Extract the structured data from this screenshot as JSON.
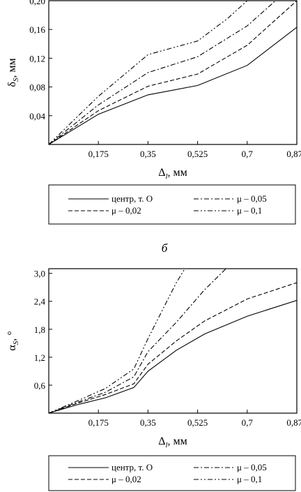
{
  "figure": {
    "separator_label": "б"
  },
  "chart_data": [
    {
      "type": "line",
      "xlabel_main": "Δ",
      "xlabel_sub": "l",
      "xlabel_unit": ", мм",
      "ylabel_main": "δ",
      "ylabel_sub": "S",
      "ylabel_unit": ", мм",
      "xlim": [
        0,
        0.875
      ],
      "ylim": [
        0,
        0.2
      ],
      "x_ticks": [
        0.175,
        0.35,
        0.525,
        0.7,
        0.875
      ],
      "x_tick_labels": [
        "0,175",
        "0,35",
        "0,525",
        "0,7",
        "0,875"
      ],
      "y_ticks": [
        0.04,
        0.08,
        0.12,
        0.16,
        0.2
      ],
      "y_tick_labels": [
        "0,04",
        "0,08",
        "0,12",
        "0,16",
        "0,20"
      ],
      "grid": false,
      "legend_position": "below",
      "series": [
        {
          "name": "центр, т. O",
          "style": "solid",
          "x": [
            0,
            0.175,
            0.35,
            0.525,
            0.7,
            0.875
          ],
          "y": [
            0,
            0.042,
            0.069,
            0.082,
            0.11,
            0.163
          ]
        },
        {
          "name": "μ – 0,02",
          "style": "dashed",
          "x": [
            0,
            0.175,
            0.35,
            0.525,
            0.7,
            0.875
          ],
          "y": [
            0,
            0.047,
            0.081,
            0.098,
            0.138,
            0.2
          ]
        },
        {
          "name": "μ – 0,05",
          "style": "dashdot",
          "x": [
            0,
            0.175,
            0.35,
            0.525,
            0.7,
            0.8
          ],
          "y": [
            0,
            0.055,
            0.1,
            0.122,
            0.165,
            0.2
          ]
        },
        {
          "name": "μ – 0,1",
          "style": "dashdotdot",
          "x": [
            0,
            0.175,
            0.35,
            0.525,
            0.63,
            0.7
          ],
          "y": [
            0,
            0.067,
            0.125,
            0.144,
            0.175,
            0.2
          ]
        }
      ]
    },
    {
      "type": "line",
      "xlabel_main": "Δ",
      "xlabel_sub": "l",
      "xlabel_unit": ", мм",
      "ylabel_main": "α",
      "ylabel_sub": "S",
      "ylabel_unit": ", °",
      "xlim": [
        0,
        0.875
      ],
      "ylim": [
        0,
        3.1
      ],
      "x_ticks": [
        0.175,
        0.35,
        0.525,
        0.7,
        0.875
      ],
      "x_tick_labels": [
        "0,175",
        "0,35",
        "0,525",
        "0,7",
        "0,875"
      ],
      "y_ticks": [
        0.6,
        1.2,
        1.8,
        2.4,
        3.0
      ],
      "y_tick_labels": [
        "0,6",
        "1,2",
        "1,8",
        "2,4",
        "3,0"
      ],
      "grid": false,
      "legend_position": "below",
      "series": [
        {
          "name": "центр, т. O",
          "style": "solid",
          "x": [
            0,
            0.1,
            0.2,
            0.3,
            0.35,
            0.45,
            0.55,
            0.7,
            0.875
          ],
          "y": [
            0,
            0.18,
            0.33,
            0.55,
            0.9,
            1.35,
            1.7,
            2.08,
            2.42
          ]
        },
        {
          "name": "μ – 0,02",
          "style": "dashed",
          "x": [
            0,
            0.1,
            0.2,
            0.3,
            0.35,
            0.45,
            0.55,
            0.7,
            0.875
          ],
          "y": [
            0,
            0.21,
            0.4,
            0.63,
            1.05,
            1.55,
            1.98,
            2.45,
            2.8
          ]
        },
        {
          "name": "μ – 0,05",
          "style": "dashdot",
          "x": [
            0,
            0.1,
            0.2,
            0.3,
            0.35,
            0.45,
            0.55,
            0.625
          ],
          "y": [
            0,
            0.23,
            0.45,
            0.78,
            1.32,
            1.95,
            2.65,
            3.1
          ]
        },
        {
          "name": "μ – 0,1",
          "style": "dashdotdot",
          "x": [
            0,
            0.1,
            0.2,
            0.3,
            0.35,
            0.4,
            0.45,
            0.48
          ],
          "y": [
            0,
            0.26,
            0.53,
            0.95,
            1.6,
            2.2,
            2.8,
            3.1
          ]
        }
      ]
    }
  ]
}
